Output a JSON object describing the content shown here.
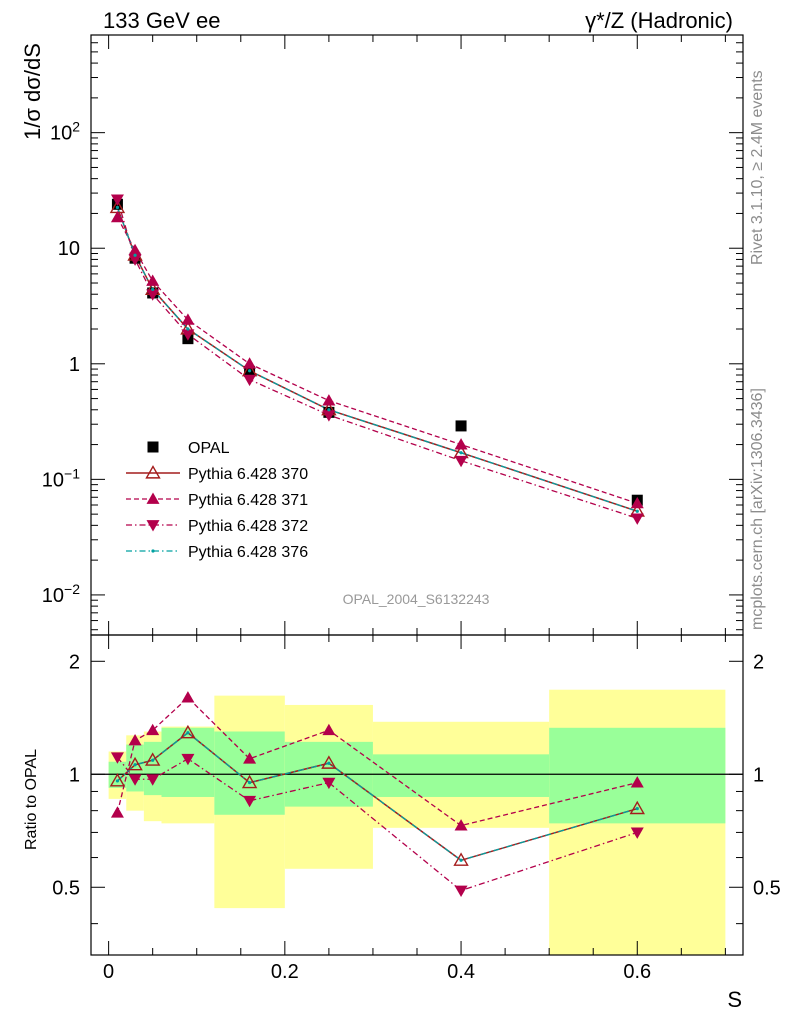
{
  "header": {
    "left": "133 GeV ee",
    "right": "γ*/Z (Hadronic)"
  },
  "side": {
    "rivet": "Rivet 3.1.10, ≥ 2.4M events",
    "mcplots": "mcplots.cern.ch [arXiv:1306.3436]"
  },
  "analysis_tag": "OPAL_2004_S6132243",
  "colors": {
    "data": "#000000",
    "mc370": "#a41d1d",
    "mc371": "#b3004b",
    "mc372": "#b3004b",
    "mc376": "#00a0a0",
    "band_inner": "#99ff99",
    "band_outer": "#ffff99"
  },
  "chart_data": [
    {
      "type": "line",
      "xlabel": "",
      "ylabel": "1/σ dσ/dS",
      "yscale": "log",
      "ylim": [
        0.0045,
        700
      ],
      "xlim": [
        -0.02,
        0.72
      ],
      "y_ticklabels": [
        {
          "v": 0.01,
          "label": "10",
          "exp": "−2"
        },
        {
          "v": 0.1,
          "label": "10",
          "exp": "−1"
        },
        {
          "v": 1,
          "label": "1",
          "exp": ""
        },
        {
          "v": 10,
          "label": "10",
          "exp": ""
        },
        {
          "v": 100,
          "label": "10",
          "exp": "2"
        }
      ],
      "legend_position": "lower-left",
      "x": [
        0.01,
        0.03,
        0.05,
        0.09,
        0.16,
        0.25,
        0.4,
        0.6
      ],
      "series": [
        {
          "name": "OPAL",
          "marker": "square",
          "values": [
            24,
            8.2,
            4.1,
            1.65,
            0.86,
            0.38,
            0.29,
            0.066
          ]
        },
        {
          "name": "Pythia 6.428 370",
          "marker": "open-triangle-up",
          "line": "solid",
          "values": [
            22.5,
            8.7,
            4.4,
            2.0,
            0.87,
            0.4,
            0.17,
            0.053
          ]
        },
        {
          "name": "Pythia 6.428 371",
          "marker": "triangle-up",
          "line": "dashed",
          "values": [
            18.5,
            9.6,
            5.2,
            2.4,
            1.0,
            0.48,
            0.2,
            0.062
          ]
        },
        {
          "name": "Pythia 6.428 372",
          "marker": "triangle-down",
          "line": "dashdot",
          "values": [
            26.5,
            8.0,
            4.0,
            1.8,
            0.73,
            0.36,
            0.145,
            0.046
          ]
        },
        {
          "name": "Pythia 6.428 376",
          "marker": "dot",
          "line": "dashdot",
          "values": [
            22.5,
            8.7,
            4.4,
            2.0,
            0.87,
            0.4,
            0.17,
            0.053
          ]
        }
      ]
    },
    {
      "type": "line",
      "xlabel": "S",
      "ylabel": "Ratio to OPAL",
      "yscale": "log",
      "ylim": [
        0.33,
        2.35
      ],
      "xlim": [
        -0.02,
        0.72
      ],
      "x_ticks": [
        0,
        0.2,
        0.4,
        0.6
      ],
      "x_ticklabels": [
        "0",
        "0.2",
        "0.4",
        "0.6"
      ],
      "y_ticks": [
        0.5,
        1,
        2
      ],
      "y_ticklabels": [
        "0.5",
        "1",
        "2"
      ],
      "x": [
        0.01,
        0.03,
        0.05,
        0.09,
        0.16,
        0.25,
        0.4,
        0.6
      ],
      "bins": [
        [
          0.0,
          0.02
        ],
        [
          0.02,
          0.04
        ],
        [
          0.04,
          0.06
        ],
        [
          0.06,
          0.12
        ],
        [
          0.12,
          0.2
        ],
        [
          0.2,
          0.3
        ],
        [
          0.3,
          0.5
        ],
        [
          0.5,
          0.7
        ]
      ],
      "band_inner": [
        [
          0.92,
          1.08
        ],
        [
          0.9,
          1.2
        ],
        [
          0.88,
          1.22
        ],
        [
          0.87,
          1.33
        ],
        [
          0.78,
          1.3
        ],
        [
          0.82,
          1.22
        ],
        [
          0.87,
          1.13
        ],
        [
          0.74,
          1.33
        ]
      ],
      "band_outer": [
        [
          0.86,
          1.15
        ],
        [
          0.8,
          1.27
        ],
        [
          0.75,
          1.3
        ],
        [
          0.74,
          1.34
        ],
        [
          0.44,
          1.62
        ],
        [
          0.56,
          1.53
        ],
        [
          0.72,
          1.38
        ],
        [
          0.33,
          1.68
        ]
      ],
      "series": [
        {
          "name": "Pythia 6.428 370",
          "values": [
            0.96,
            1.06,
            1.09,
            1.29,
            0.95,
            1.07,
            0.59,
            0.81
          ]
        },
        {
          "name": "Pythia 6.428 371",
          "values": [
            0.79,
            1.23,
            1.31,
            1.6,
            1.1,
            1.31,
            0.73,
            0.95
          ]
        },
        {
          "name": "Pythia 6.428 372",
          "values": [
            1.11,
            0.97,
            0.97,
            1.1,
            0.85,
            0.95,
            0.49,
            0.7
          ]
        },
        {
          "name": "Pythia 6.428 376",
          "values": [
            0.96,
            1.06,
            1.09,
            1.29,
            0.95,
            1.07,
            0.59,
            0.81
          ]
        }
      ]
    }
  ]
}
